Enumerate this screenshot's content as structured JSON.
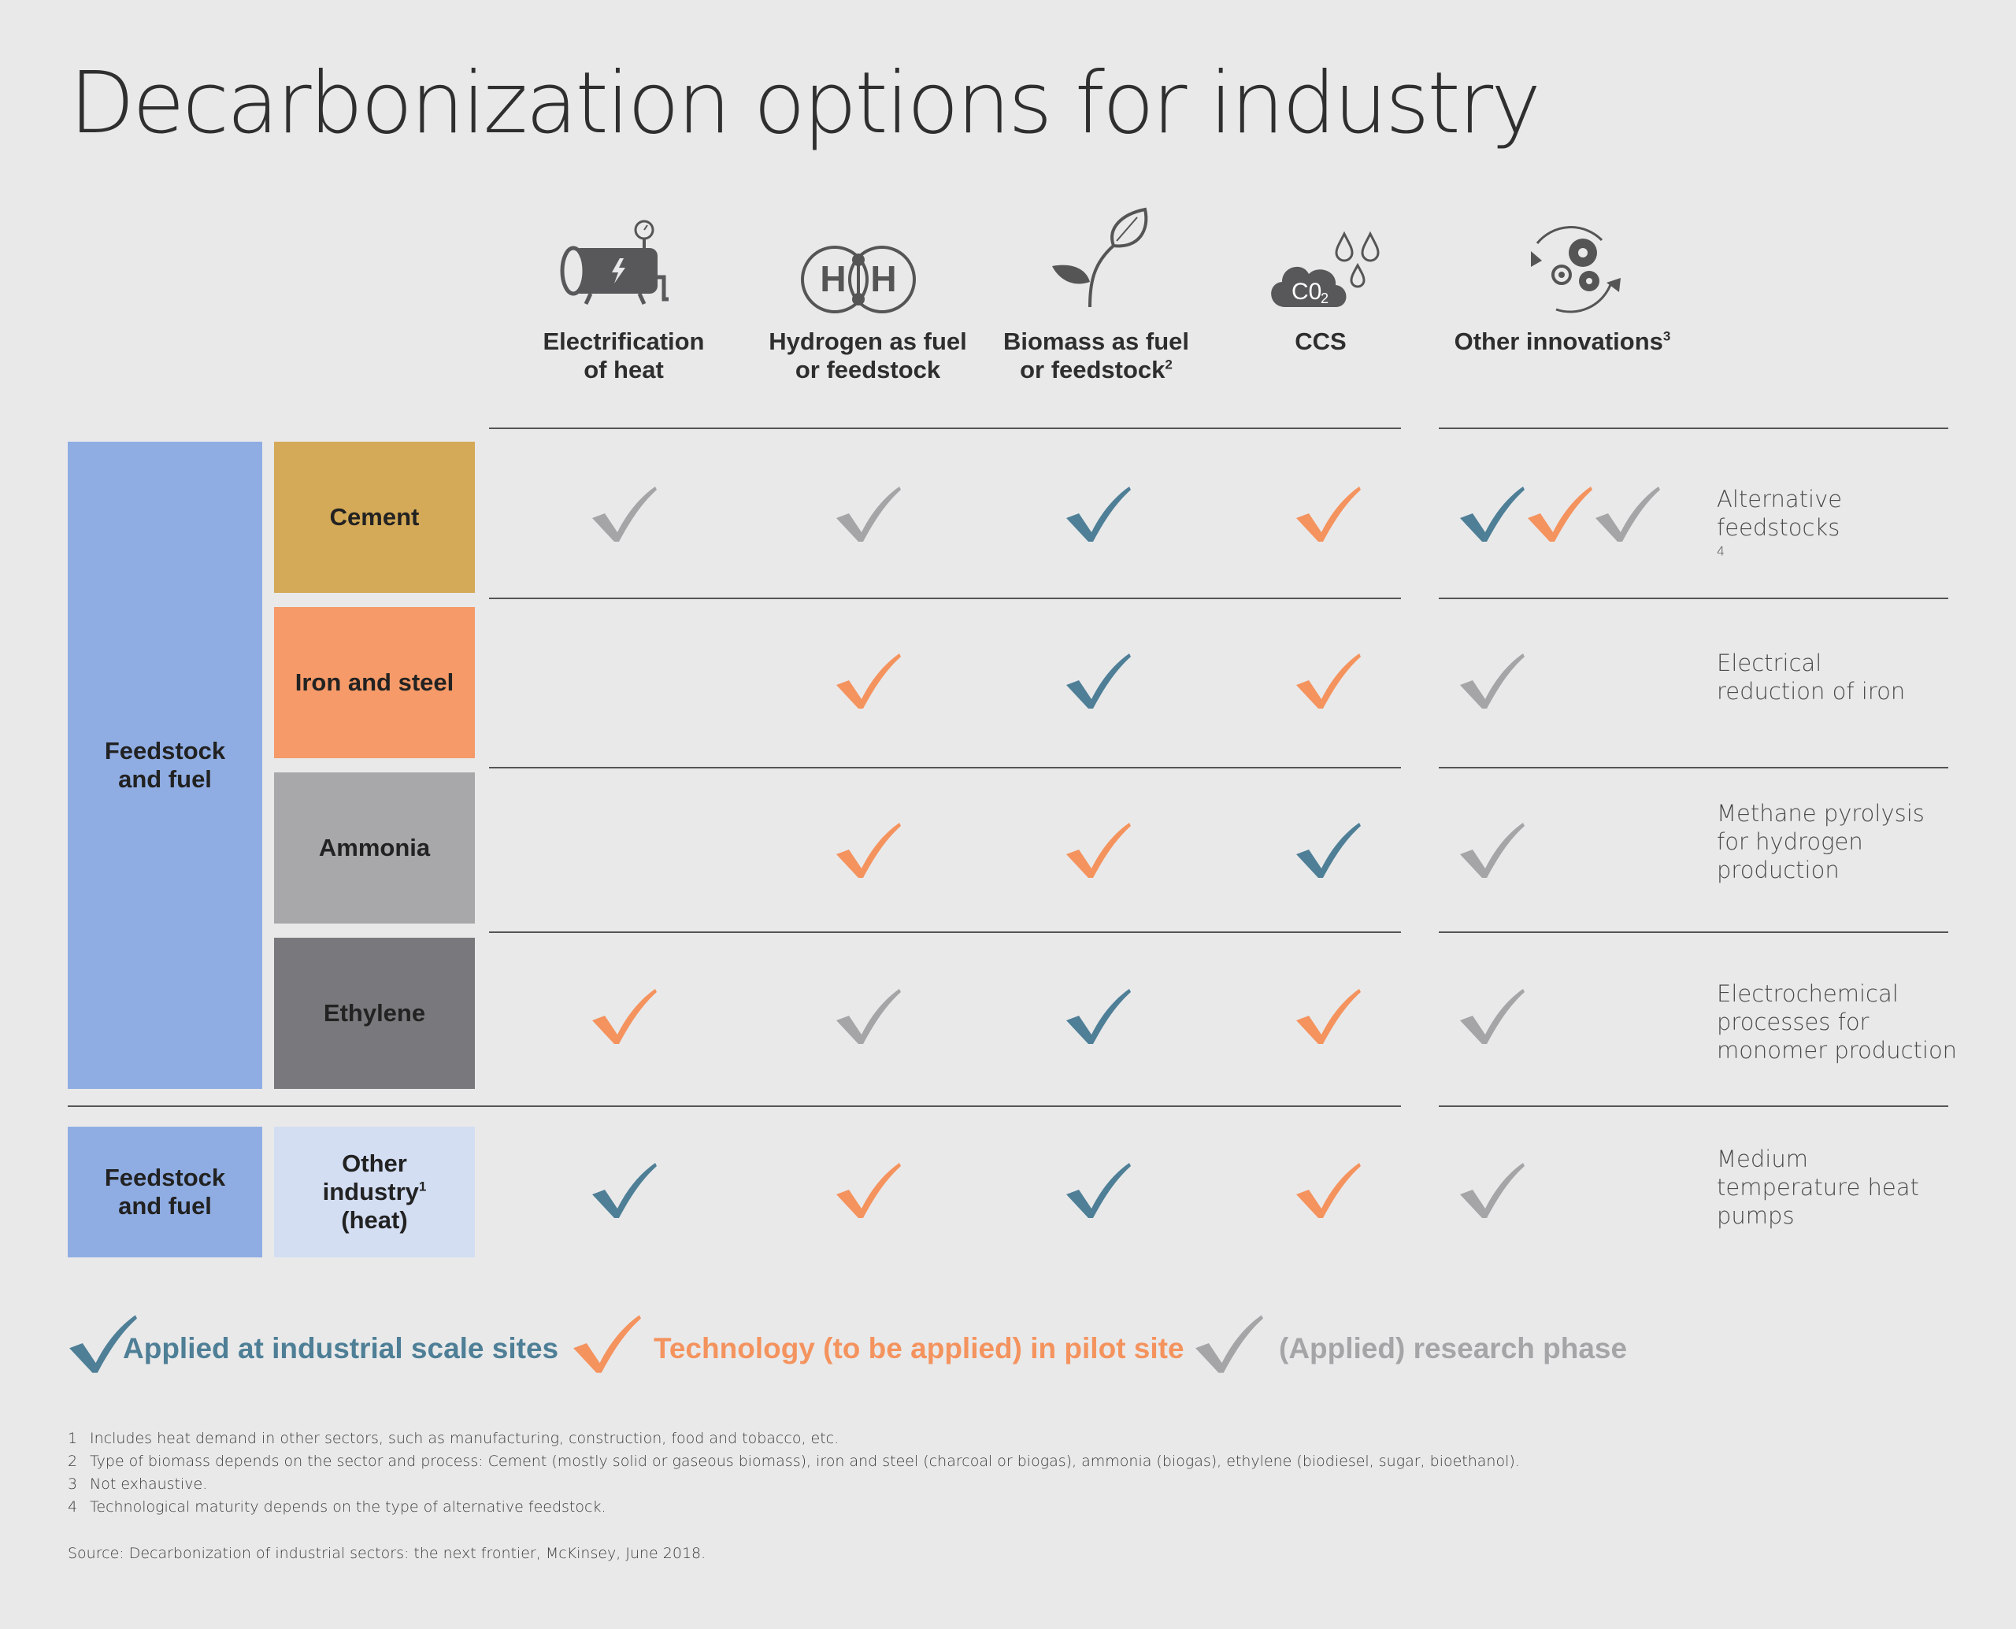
{
  "title": "Decarbonization options for industry",
  "columns": [
    {
      "line1": "Electrification",
      "line2": "of heat",
      "sup": "",
      "icon": "electric-boiler-icon"
    },
    {
      "line1": "Hydrogen as fuel",
      "line2": "or feedstock",
      "sup": "",
      "icon": "hydrogen-molecule-icon"
    },
    {
      "line1": "Biomass as fuel",
      "line2": "or feedstock",
      "sup": "2",
      "icon": "plant-leaf-icon"
    },
    {
      "line1": "CCS",
      "line2": "",
      "sup": "",
      "icon": "co2-cloud-icon"
    },
    {
      "line1": "Other innovations",
      "line2": "",
      "sup": "3",
      "icon": "gears-cycle-icon"
    }
  ],
  "groups": {
    "main": {
      "line1": "Feedstock",
      "line2": "and fuel"
    },
    "heat": {
      "line1": "Feedstock",
      "line2": "and fuel"
    }
  },
  "rows": [
    {
      "sector": {
        "line1": "Cement",
        "line2": "",
        "line3": ""
      },
      "color": "#d4a957",
      "checks": [
        "research",
        "research",
        "industrial",
        "pilot"
      ],
      "other_checks": [
        "industrial",
        "pilot",
        "research"
      ],
      "innovation": [
        "Alternative",
        "feedstocks"
      ],
      "innovation_sup": "4"
    },
    {
      "sector": {
        "line1": "Iron and steel",
        "line2": "",
        "line3": ""
      },
      "color": "#f59a68",
      "checks": [
        "",
        "pilot",
        "industrial",
        "pilot"
      ],
      "other_checks": [
        "research"
      ],
      "innovation": [
        "Electrical",
        "reduction of iron"
      ],
      "innovation_sup": ""
    },
    {
      "sector": {
        "line1": "Ammonia",
        "line2": "",
        "line3": ""
      },
      "color": "#a8a8aa",
      "checks": [
        "",
        "pilot",
        "pilot",
        "industrial"
      ],
      "other_checks": [
        "research"
      ],
      "innovation": [
        "Methane pyrolysis",
        "for hydrogen",
        "production"
      ],
      "innovation_sup": ""
    },
    {
      "sector": {
        "line1": "Ethylene",
        "line2": "",
        "line3": ""
      },
      "color": "#79797d",
      "checks": [
        "pilot",
        "research",
        "industrial",
        "pilot"
      ],
      "other_checks": [
        "research"
      ],
      "innovation": [
        "Electrochemical",
        "processes for",
        "monomer production"
      ],
      "innovation_sup": ""
    },
    {
      "sector": {
        "line1": "Other",
        "line2": "industry",
        "line3": "(heat)",
        "sup": "1"
      },
      "color": "#d3def3",
      "checks": [
        "industrial",
        "pilot",
        "industrial",
        "pilot"
      ],
      "other_checks": [
        "research"
      ],
      "innovation": [
        "Medium",
        "temperature heat",
        "pumps"
      ],
      "innovation_sup": ""
    }
  ],
  "legend": [
    {
      "status": "industrial",
      "label": "Applied at industrial scale sites"
    },
    {
      "status": "pilot",
      "label": "Technology (to be applied) in pilot site"
    },
    {
      "status": "research",
      "label": "(Applied) research phase"
    }
  ],
  "colors": {
    "industrial": "#4e7f96",
    "pilot": "#f4935e",
    "research": "#a5a5a7",
    "group": "#8fade3",
    "group_light": "#d3def3"
  },
  "footnotes": [
    {
      "num": "1",
      "text": "Includes heat demand in other sectors, such as manufacturing, construction, food and tobacco, etc."
    },
    {
      "num": "2",
      "text": "Type of biomass depends on the sector and process: Cement (mostly solid or gaseous biomass), iron and steel (charcoal or biogas), ammonia (biogas), ethylene (biodiesel, sugar, bioethanol)."
    },
    {
      "num": "3",
      "text": "Not exhaustive."
    },
    {
      "num": "4",
      "text": "Technological maturity depends on the type of alternative feedstock."
    }
  ],
  "source": "Source: Decarbonization of industrial sectors: the next frontier, McKinsey, June 2018."
}
